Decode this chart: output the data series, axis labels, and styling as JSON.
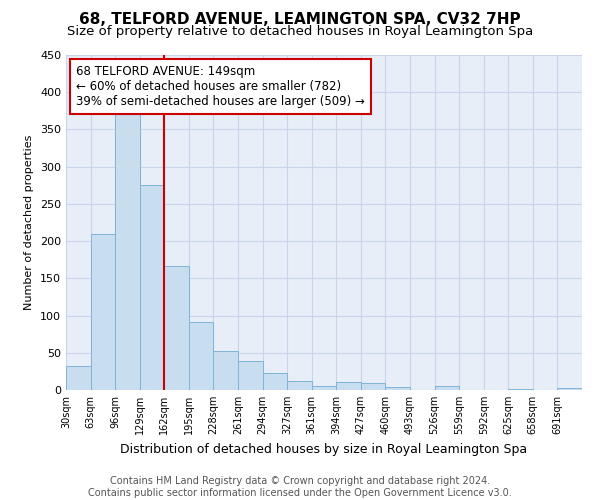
{
  "title": "68, TELFORD AVENUE, LEAMINGTON SPA, CV32 7HP",
  "subtitle": "Size of property relative to detached houses in Royal Leamington Spa",
  "xlabel": "Distribution of detached houses by size in Royal Leamington Spa",
  "ylabel": "Number of detached properties",
  "footer_line1": "Contains HM Land Registry data © Crown copyright and database right 2024.",
  "footer_line2": "Contains public sector information licensed under the Open Government Licence v3.0.",
  "bin_labels": [
    "30sqm",
    "63sqm",
    "96sqm",
    "129sqm",
    "162sqm",
    "195sqm",
    "228sqm",
    "261sqm",
    "294sqm",
    "327sqm",
    "361sqm",
    "394sqm",
    "427sqm",
    "460sqm",
    "493sqm",
    "526sqm",
    "559sqm",
    "592sqm",
    "625sqm",
    "658sqm",
    "691sqm"
  ],
  "bar_heights": [
    32,
    210,
    380,
    275,
    167,
    92,
    52,
    39,
    23,
    12,
    6,
    11,
    10,
    4,
    0,
    5,
    0,
    0,
    2,
    0,
    3
  ],
  "bar_color": "#c8ddf0",
  "bar_edge_color": "#7eb3d8",
  "vline_color": "#cc0000",
  "vline_x": 4.0,
  "annotation_text_line1": "68 TELFORD AVENUE: 149sqm",
  "annotation_text_line2": "← 60% of detached houses are smaller (782)",
  "annotation_text_line3": "39% of semi-detached houses are larger (509) →",
  "annotation_box_facecolor": "#ffffff",
  "annotation_box_edgecolor": "#cc0000",
  "ylim": [
    0,
    450
  ],
  "grid_color": "#c8d4e8",
  "plot_bg_color": "#e8eef8",
  "fig_bg_color": "#ffffff",
  "title_fontsize": 11,
  "subtitle_fontsize": 9.5,
  "ylabel_fontsize": 8,
  "xlabel_fontsize": 9,
  "tick_fontsize": 8,
  "footer_fontsize": 7,
  "annot_fontsize": 8.5
}
